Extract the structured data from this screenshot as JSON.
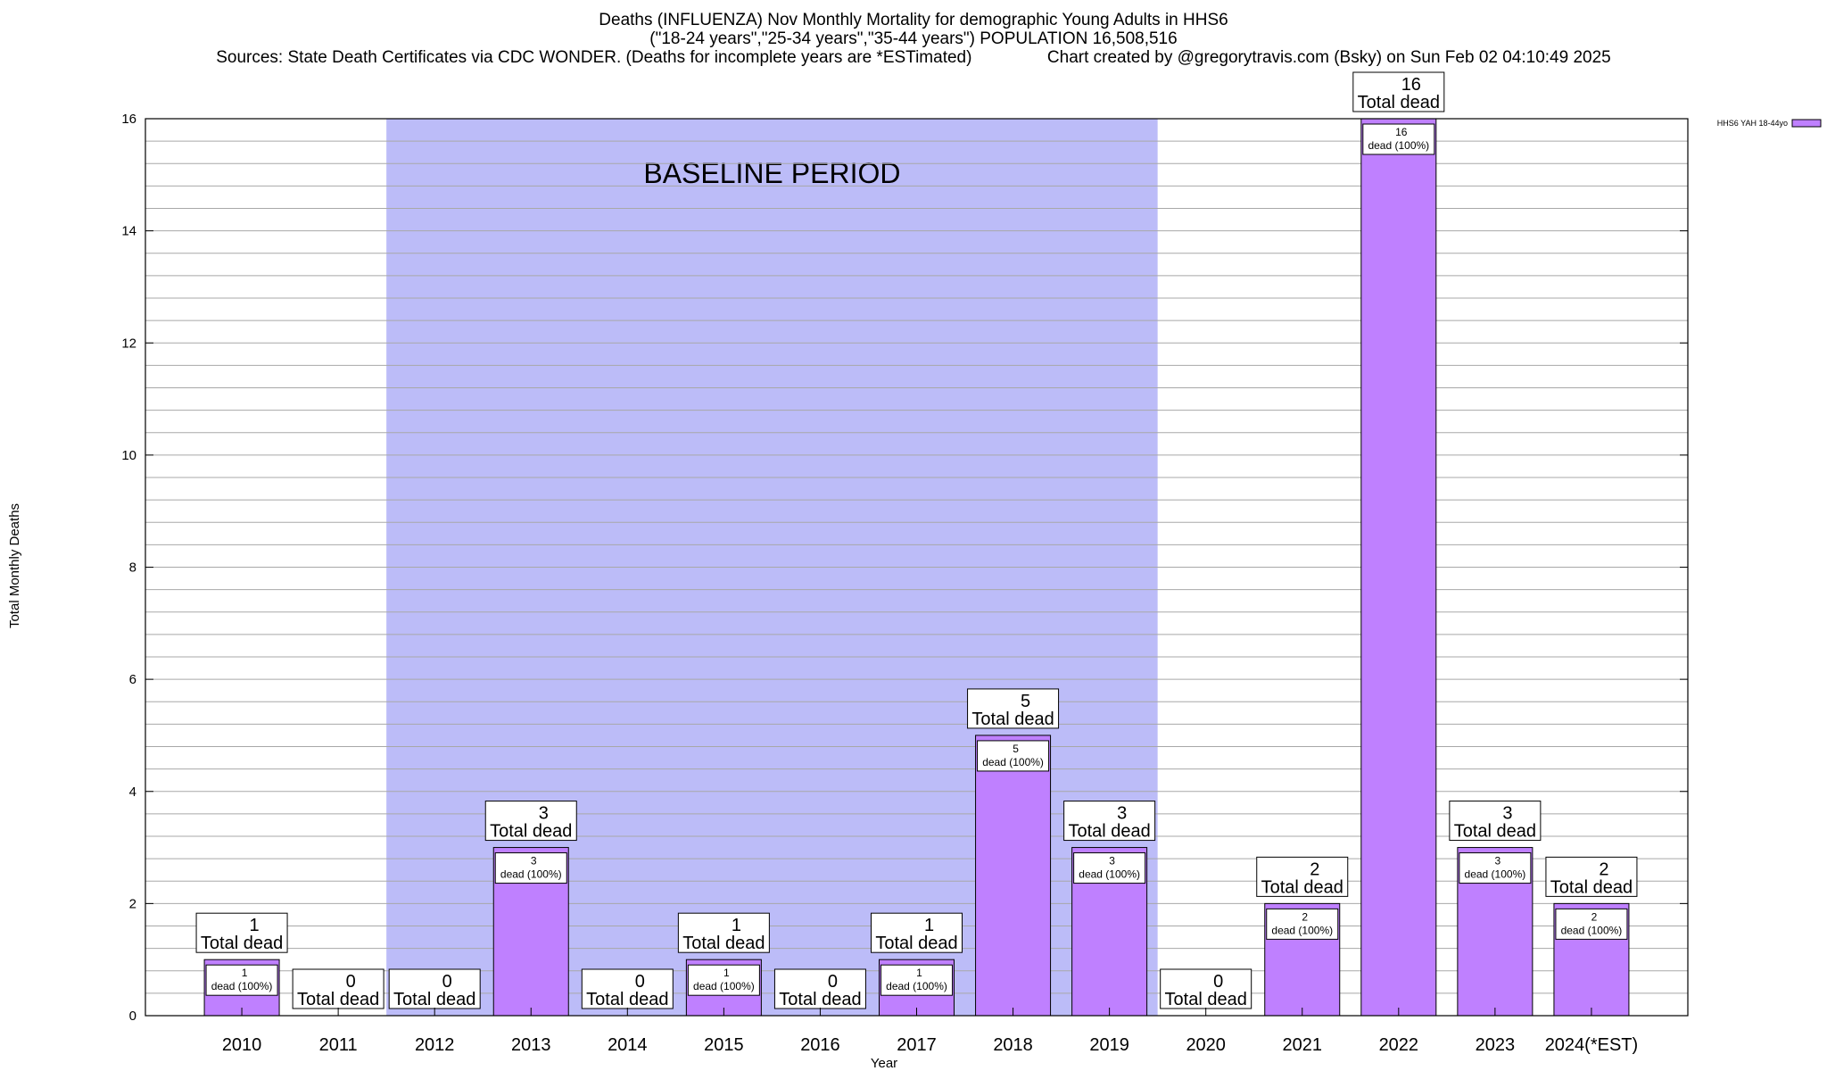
{
  "header": {
    "title_line1": "Deaths (INFLUENZA) Nov Monthly Mortality for demographic Young Adults in HHS6",
    "title_line2": "(\"18-24 years\",\"25-34 years\",\"35-44 years\") POPULATION 16,508,516",
    "sources": "Sources: State Death Certificates via CDC WONDER. (Deaths for incomplete years are *ESTimated)",
    "credit": "Chart created by @gregorytravis.com (Bsky) on Sun Feb 02 04:10:49 2025"
  },
  "chart_data": {
    "type": "bar",
    "title": "Deaths (INFLUENZA) Nov Monthly Mortality for demographic Young Adults in HHS6",
    "xlabel": "Year",
    "ylabel": "Total Monthly Deaths",
    "ylim": [
      0,
      16
    ],
    "y_ticks": [
      0,
      2,
      4,
      6,
      8,
      10,
      12,
      14,
      16
    ],
    "y_minor_step": 0.4,
    "grid": true,
    "legend_position": "top-right",
    "categories": [
      "2010",
      "2011",
      "2012",
      "2013",
      "2014",
      "2015",
      "2016",
      "2017",
      "2018",
      "2019",
      "2020",
      "2021",
      "2022",
      "2023",
      "2024(*EST)"
    ],
    "series": [
      {
        "name": "HHS6 YAH 18-44yo",
        "color": "#bf80ff",
        "values": [
          1,
          0,
          0,
          3,
          0,
          1,
          0,
          1,
          5,
          3,
          0,
          2,
          16,
          3,
          2
        ]
      }
    ],
    "total_label_suffix": "Total dead",
    "segment_label_suffix": "dead (100%)",
    "baseline": {
      "label": "BASELINE PERIOD",
      "from": "2012",
      "to": "2019",
      "color": "#bcbcf8"
    }
  }
}
